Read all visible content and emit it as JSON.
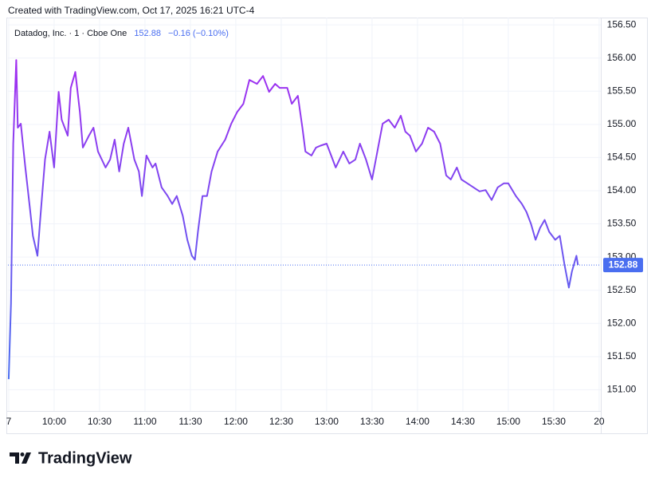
{
  "header": "Created with TradingView.com, Oct 17, 2025 16:21 UTC-4",
  "footer": "TradingView",
  "chart_data": {
    "type": "line",
    "symbol": "Datadog, Inc. · 1 · Cboe One",
    "change": "−0.16 (−0.10%)",
    "x": [
      570,
      571.5,
      573,
      575,
      576,
      578,
      581,
      584,
      586,
      589,
      591,
      594,
      597,
      600,
      603,
      605,
      609,
      611,
      614,
      617,
      619,
      623,
      626,
      629,
      634,
      637,
      640,
      643,
      646,
      649,
      653,
      656,
      658,
      661,
      665,
      667,
      671,
      675,
      678,
      681,
      685,
      688,
      691,
      693,
      695,
      698,
      701,
      704,
      708,
      713,
      717,
      721,
      725,
      729,
      734,
      738,
      742,
      746,
      749,
      754,
      757,
      761,
      764,
      766,
      770,
      773,
      776,
      780,
      783,
      786,
      791,
      795,
      799,
      802,
      806,
      810,
      814,
      817,
      821,
      825,
      829,
      832,
      835,
      839,
      843,
      847,
      851,
      855,
      859,
      862,
      866,
      869,
      873,
      877,
      881,
      885,
      889,
      893,
      897,
      900,
      905,
      909,
      912,
      915,
      918,
      921,
      924,
      927,
      931,
      934,
      937,
      940,
      942,
      945,
      946
    ],
    "series": [
      {
        "name": "Datadog, Inc.",
        "values": [
          151.16,
          152.3,
          154.71,
          155.97,
          154.95,
          155.01,
          154.35,
          153.74,
          153.32,
          153.02,
          153.62,
          154.47,
          154.89,
          154.35,
          155.49,
          155.07,
          154.83,
          155.55,
          155.79,
          155.19,
          154.65,
          154.83,
          154.95,
          154.59,
          154.35,
          154.47,
          154.77,
          154.29,
          154.71,
          154.95,
          154.47,
          154.29,
          153.92,
          154.53,
          154.35,
          154.41,
          154.05,
          153.92,
          153.8,
          153.92,
          153.62,
          153.26,
          153.02,
          152.96,
          153.38,
          153.92,
          153.92,
          154.29,
          154.59,
          154.77,
          155.01,
          155.19,
          155.31,
          155.67,
          155.61,
          155.73,
          155.49,
          155.61,
          155.55,
          155.55,
          155.31,
          155.43,
          154.95,
          154.59,
          154.53,
          154.65,
          154.68,
          154.71,
          154.53,
          154.35,
          154.59,
          154.41,
          154.47,
          154.71,
          154.47,
          154.17,
          154.65,
          155.01,
          155.07,
          154.95,
          155.13,
          154.89,
          154.83,
          154.59,
          154.71,
          154.95,
          154.89,
          154.71,
          154.23,
          154.17,
          154.35,
          154.17,
          154.11,
          154.05,
          153.99,
          154.01,
          153.86,
          154.05,
          154.11,
          154.11,
          153.92,
          153.8,
          153.68,
          153.5,
          153.26,
          153.44,
          153.56,
          153.38,
          153.26,
          153.32,
          152.9,
          152.54,
          152.78,
          153.02,
          152.88
        ]
      }
    ],
    "color_high": "#a22df0",
    "color_low": "#4a6ef0",
    "xlim": [
      569.5,
      961.1
    ],
    "xticks": [
      {
        "value": 570,
        "label": "7"
      },
      {
        "value": 600,
        "label": "10:00"
      },
      {
        "value": 630,
        "label": "10:30"
      },
      {
        "value": 660,
        "label": "11:00"
      },
      {
        "value": 690,
        "label": "11:30"
      },
      {
        "value": 720,
        "label": "12:00"
      },
      {
        "value": 750,
        "label": "12:30"
      },
      {
        "value": 780,
        "label": "13:00"
      },
      {
        "value": 810,
        "label": "13:30"
      },
      {
        "value": 840,
        "label": "14:00"
      },
      {
        "value": 870,
        "label": "14:30"
      },
      {
        "value": 900,
        "label": "15:00"
      },
      {
        "value": 930,
        "label": "15:30"
      },
      {
        "value": 960,
        "label": "20"
      }
    ],
    "ylim": [
      150.68,
      156.61
    ],
    "yticks": [
      {
        "value": 151,
        "label": "151.00"
      },
      {
        "value": 151.5,
        "label": "151.50"
      },
      {
        "value": 152,
        "label": "152.00"
      },
      {
        "value": 152.5,
        "label": "152.50"
      },
      {
        "value": 153,
        "label": "153.00"
      },
      {
        "value": 153.5,
        "label": "153.50"
      },
      {
        "value": 154,
        "label": "154.00"
      },
      {
        "value": 154.5,
        "label": "154.50"
      },
      {
        "value": 155,
        "label": "155.00"
      },
      {
        "value": 155.5,
        "label": "155.50"
      },
      {
        "value": 156,
        "label": "156.00"
      },
      {
        "value": 156.5,
        "label": "156.50"
      }
    ],
    "grid": true
  }
}
